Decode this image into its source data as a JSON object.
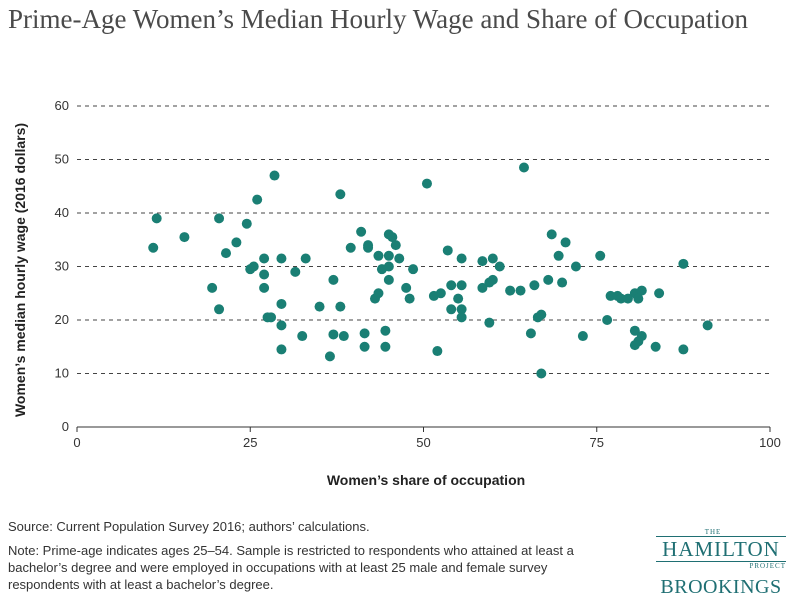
{
  "header": {
    "title": "Prime-Age Women’s Median Hourly Wage and Share of Occupation"
  },
  "footer": {
    "source": "Source: Current Population Survey 2016; authors’ calculations.",
    "note": "Note: Prime-age indicates ages 25–54. Sample is restricted to respondents who attained at least a bachelor’s degree and were employed in occupations with at least 25 male and female survey respondents with at least a bachelor’s degree."
  },
  "logo": {
    "the": "THE",
    "hamilton": "HAMILTON",
    "project": "PROJECT",
    "brookings": "BROOKINGS"
  },
  "chart_data": {
    "type": "scatter",
    "title": "Prime-Age Women’s Median Hourly Wage and Share of Occupation",
    "xlabel": "Women’s share of occupation",
    "ylabel": "Women’s median hourly wage (2016 dollars)",
    "xlim": [
      0,
      100
    ],
    "ylim": [
      0,
      60
    ],
    "xticks": [
      0,
      25,
      50,
      75,
      100
    ],
    "yticks": [
      0,
      10,
      20,
      30,
      40,
      50,
      60
    ],
    "grid": "horizontal dashed",
    "marker_color": "#1a7f74",
    "points": [
      [
        11.5,
        39
      ],
      [
        11,
        33.5
      ],
      [
        15.5,
        35.5
      ],
      [
        19.5,
        26
      ],
      [
        20.5,
        22
      ],
      [
        20.5,
        39
      ],
      [
        21.5,
        32.5
      ],
      [
        23,
        34.5
      ],
      [
        24.5,
        38
      ],
      [
        25,
        29.5
      ],
      [
        25.5,
        30
      ],
      [
        26,
        42.5
      ],
      [
        27,
        31.5
      ],
      [
        27,
        28.5
      ],
      [
        27,
        26
      ],
      [
        27.5,
        20.5
      ],
      [
        28,
        20.5
      ],
      [
        28.5,
        47
      ],
      [
        29.5,
        31.5
      ],
      [
        29.5,
        23
      ],
      [
        29.5,
        19
      ],
      [
        29.5,
        14.5
      ],
      [
        31.5,
        29
      ],
      [
        32.5,
        17
      ],
      [
        33,
        31.5
      ],
      [
        35,
        22.5
      ],
      [
        36.5,
        13.2
      ],
      [
        37,
        27.5
      ],
      [
        37,
        17.3
      ],
      [
        38,
        22.5
      ],
      [
        38,
        43.5
      ],
      [
        38.5,
        17
      ],
      [
        39.5,
        33.5
      ],
      [
        41,
        36.5
      ],
      [
        42,
        34
      ],
      [
        41.5,
        15
      ],
      [
        41.5,
        17.5
      ],
      [
        42,
        33.5
      ],
      [
        43,
        24
      ],
      [
        43.5,
        25
      ],
      [
        43.5,
        32
      ],
      [
        44,
        29.5
      ],
      [
        44.5,
        15
      ],
      [
        44.5,
        18
      ],
      [
        45,
        36
      ],
      [
        45,
        32
      ],
      [
        45,
        30
      ],
      [
        45,
        27.5
      ],
      [
        45.5,
        35.5
      ],
      [
        46,
        34
      ],
      [
        46.5,
        31.5
      ],
      [
        47.5,
        26
      ],
      [
        48,
        24
      ],
      [
        48.5,
        29.5
      ],
      [
        50.5,
        45.5
      ],
      [
        51.5,
        24.5
      ],
      [
        52,
        14.2
      ],
      [
        52.5,
        25
      ],
      [
        53.5,
        33
      ],
      [
        54,
        22
      ],
      [
        54,
        26.5
      ],
      [
        55,
        24
      ],
      [
        55.5,
        26.5
      ],
      [
        55.5,
        31.5
      ],
      [
        55.5,
        22
      ],
      [
        55.5,
        20.5
      ],
      [
        58.5,
        31
      ],
      [
        58.5,
        26
      ],
      [
        59.5,
        27
      ],
      [
        59.5,
        19.5
      ],
      [
        60,
        27.5
      ],
      [
        60,
        31.5
      ],
      [
        61,
        30
      ],
      [
        62.5,
        25.5
      ],
      [
        64,
        25.5
      ],
      [
        64.5,
        48.5
      ],
      [
        65.5,
        17.5
      ],
      [
        66,
        26.5
      ],
      [
        66.5,
        20.5
      ],
      [
        67,
        21
      ],
      [
        67,
        10
      ],
      [
        68,
        27.5
      ],
      [
        68.5,
        36
      ],
      [
        69.5,
        32
      ],
      [
        70,
        27
      ],
      [
        70.5,
        34.5
      ],
      [
        72,
        30
      ],
      [
        73,
        17
      ],
      [
        75.5,
        32
      ],
      [
        76.5,
        20
      ],
      [
        77,
        24.5
      ],
      [
        78,
        24.5
      ],
      [
        78.5,
        24
      ],
      [
        79.5,
        24
      ],
      [
        80.5,
        25
      ],
      [
        80.5,
        18
      ],
      [
        81,
        24
      ],
      [
        81,
        16
      ],
      [
        80.5,
        15.3
      ],
      [
        81.5,
        17
      ],
      [
        81.5,
        25.5
      ],
      [
        83.5,
        15
      ],
      [
        84,
        25
      ],
      [
        87.5,
        30.5
      ],
      [
        87.5,
        14.5
      ],
      [
        91,
        19
      ]
    ]
  }
}
